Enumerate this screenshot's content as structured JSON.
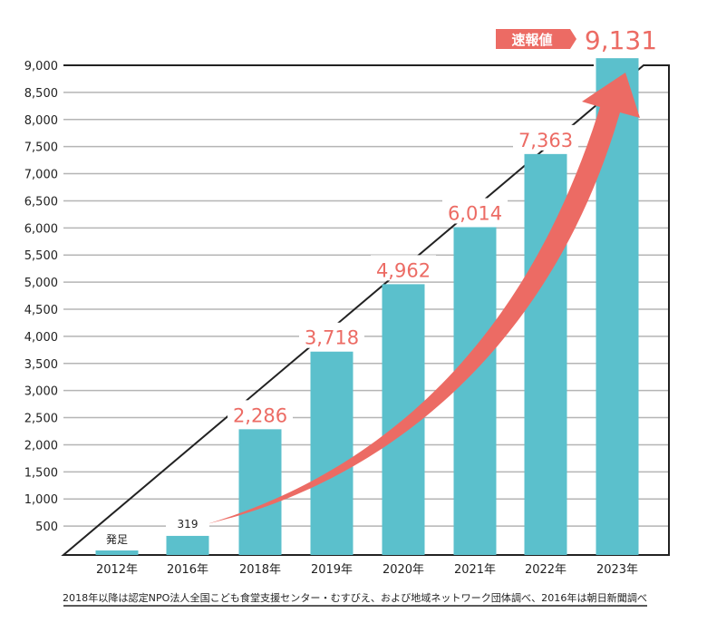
{
  "chart_data": {
    "type": "bar",
    "title": "",
    "xlabel": "",
    "ylabel": "",
    "ylim": [
      0,
      9000
    ],
    "yticks": [
      "500",
      "1,000",
      "1,500",
      "2,000",
      "2,500",
      "3,000",
      "3,500",
      "4,000",
      "4,500",
      "5,000",
      "5,500",
      "6,000",
      "6,500",
      "7,000",
      "7,500",
      "8,000",
      "8,500",
      "9,000"
    ],
    "categories": [
      "2012年",
      "2016年",
      "2018年",
      "2019年",
      "2020年",
      "2021年",
      "2022年",
      "2023年"
    ],
    "values": [
      0,
      319,
      2286,
      3718,
      4962,
      6014,
      7363,
      9131
    ],
    "data_labels": [
      "発足",
      "319",
      "2,286",
      "3,718",
      "4,962",
      "6,014",
      "7,363",
      "9,131"
    ],
    "badge": "速報値",
    "source_note": "2018年以降は認定NPO法人全国こども食堂支援センター・むすびえ、および地域ネットワーク団体調べ、2016年は朝日新聞調べ",
    "grid": true,
    "colors": {
      "bar": "#5bc0cc",
      "accent": "#ec6b64",
      "grid": "#b5b5b5",
      "axis": "#222222"
    }
  }
}
